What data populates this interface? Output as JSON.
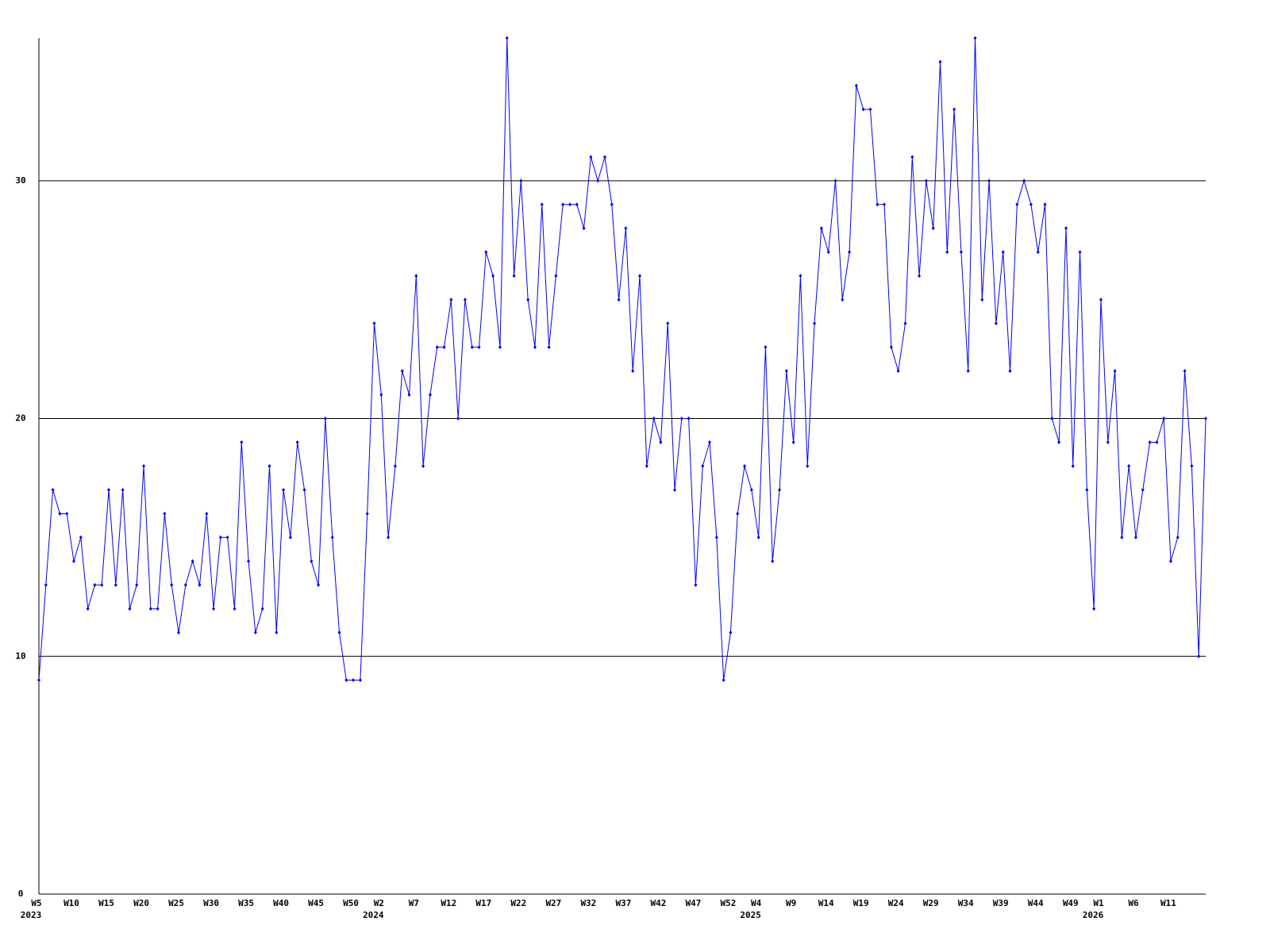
{
  "chart_data": {
    "type": "line",
    "categories": [
      "W5",
      null,
      null,
      null,
      null,
      "W10",
      null,
      null,
      null,
      null,
      "W15",
      null,
      null,
      null,
      null,
      "W20",
      null,
      null,
      null,
      null,
      "W25",
      null,
      null,
      null,
      null,
      "W30",
      null,
      null,
      null,
      null,
      "W35",
      null,
      null,
      null,
      null,
      "W40",
      null,
      null,
      null,
      null,
      "W45",
      null,
      null,
      null,
      null,
      "W50",
      null,
      null,
      null,
      "W2",
      null,
      null,
      null,
      null,
      "W7",
      null,
      null,
      null,
      null,
      "W12",
      null,
      null,
      null,
      null,
      "W17",
      null,
      null,
      null,
      null,
      "W22",
      null,
      null,
      null,
      null,
      "W27",
      null,
      null,
      null,
      null,
      "W32",
      null,
      null,
      null,
      null,
      "W37",
      null,
      null,
      null,
      null,
      "W42",
      null,
      null,
      null,
      null,
      "W47",
      null,
      null,
      null,
      null,
      "W52",
      null,
      null,
      null,
      "W4",
      null,
      null,
      null,
      null,
      "W9",
      null,
      null,
      null,
      null,
      "W14",
      null,
      null,
      null,
      null,
      "W19",
      null,
      null,
      null,
      null,
      "W24",
      null,
      null,
      null,
      null,
      "W29",
      null,
      null,
      null,
      null,
      "W34",
      null,
      null,
      null,
      null,
      "W39",
      null,
      null,
      null,
      null,
      "W44",
      null,
      null,
      null,
      null,
      "W49",
      null,
      null,
      null,
      "W1",
      null,
      null,
      null,
      null,
      "W6",
      null,
      null,
      null,
      null,
      "W11",
      null,
      null,
      null,
      null,
      null
    ],
    "category_years": [
      "2023",
      null,
      null,
      null,
      null,
      null,
      null,
      null,
      null,
      null,
      null,
      null,
      null,
      null,
      null,
      null,
      null,
      null,
      null,
      null,
      null,
      null,
      null,
      null,
      null,
      null,
      null,
      null,
      null,
      null,
      null,
      null,
      null,
      null,
      null,
      null,
      null,
      null,
      null,
      null,
      null,
      null,
      null,
      null,
      null,
      null,
      null,
      null,
      null,
      "2024",
      null,
      null,
      null,
      null,
      null,
      null,
      null,
      null,
      null,
      null,
      null,
      null,
      null,
      null,
      null,
      null,
      null,
      null,
      null,
      null,
      null,
      null,
      null,
      null,
      null,
      null,
      null,
      null,
      null,
      null,
      null,
      null,
      null,
      null,
      null,
      null,
      null,
      null,
      null,
      null,
      null,
      null,
      null,
      null,
      null,
      null,
      null,
      null,
      null,
      null,
      null,
      null,
      null,
      "2025",
      null,
      null,
      null,
      null,
      null,
      null,
      null,
      null,
      null,
      null,
      null,
      null,
      null,
      null,
      null,
      null,
      null,
      null,
      null,
      null,
      null,
      null,
      null,
      null,
      null,
      null,
      null,
      null,
      null,
      null,
      null,
      null,
      null,
      null,
      null,
      null,
      null,
      null,
      null,
      null,
      null,
      null,
      null,
      null,
      null,
      null,
      null,
      null,
      "2026",
      null,
      null,
      null,
      null,
      null,
      null,
      null,
      null,
      null,
      null,
      null,
      null,
      null,
      null,
      null
    ],
    "series": [
      {
        "color": "#0000ff",
        "values": [
          9,
          13,
          17,
          16,
          16,
          14,
          15,
          12,
          13,
          13,
          17,
          13,
          17,
          12,
          13,
          18,
          12,
          12,
          16,
          13,
          11,
          13,
          14,
          13,
          16,
          12,
          15,
          15,
          12,
          19,
          14,
          11,
          12,
          18,
          11,
          17,
          15,
          19,
          17,
          14,
          13,
          20,
          15,
          11,
          9,
          9,
          9,
          16,
          24,
          21,
          15,
          18,
          22,
          21,
          26,
          18,
          21,
          23,
          23,
          25,
          20,
          25,
          23,
          23,
          27,
          26,
          23,
          36,
          26,
          30,
          25,
          23,
          29,
          23,
          26,
          29,
          29,
          29,
          28,
          31,
          30,
          31,
          29,
          25,
          28,
          22,
          26,
          18,
          20,
          19,
          24,
          17,
          20,
          20,
          13,
          18,
          19,
          15,
          9,
          11,
          16,
          18,
          17,
          15,
          23,
          14,
          17,
          22,
          19,
          26,
          18,
          24,
          28,
          27,
          30,
          25,
          27,
          34,
          33,
          33,
          29,
          29,
          23,
          22,
          24,
          31,
          26,
          30,
          28,
          35,
          27,
          33,
          27,
          22,
          36,
          25,
          30,
          24,
          27,
          22,
          29,
          30,
          29,
          27,
          29,
          20,
          19,
          28,
          18,
          27,
          17,
          12,
          25,
          19,
          22,
          15,
          18,
          15,
          17,
          19,
          19,
          20,
          14,
          15,
          22,
          18,
          10,
          20
        ]
      }
    ],
    "ylim": [
      0,
      36
    ],
    "yticks": [
      0,
      10,
      20,
      30
    ],
    "grid": true
  }
}
